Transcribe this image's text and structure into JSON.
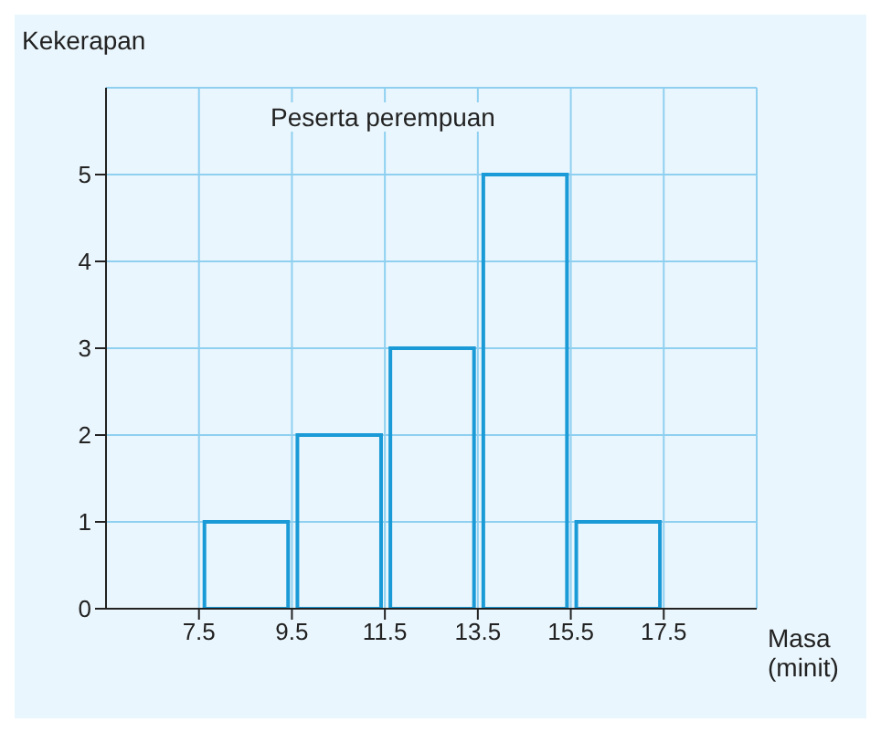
{
  "chart_data": {
    "type": "histogram",
    "title": "Peserta perempuan",
    "xlabel": "Masa\n(minit)",
    "ylabel": "Kekerapan",
    "bins": [
      7.5,
      9.5,
      11.5,
      13.5,
      15.5,
      17.5
    ],
    "values": [
      1,
      2,
      3,
      5,
      1
    ],
    "color": "#1a9ad6",
    "xlim": [
      5.5,
      19.5
    ],
    "xticks": [
      7.5,
      9.5,
      11.5,
      13.5,
      15.5,
      17.5
    ],
    "ylim": [
      0,
      6
    ],
    "yticks": [
      0,
      1,
      2,
      3,
      4,
      5
    ],
    "grid": true
  }
}
